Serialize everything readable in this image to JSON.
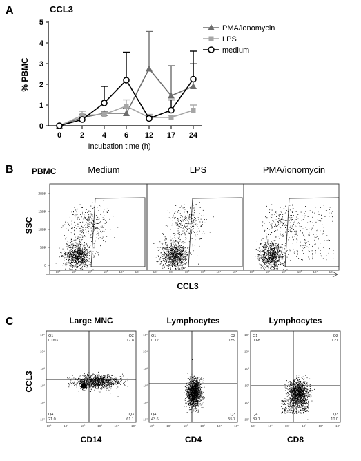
{
  "panels": {
    "A": {
      "letter": "A",
      "chart_data": {
        "type": "line",
        "title": "CCL3",
        "xlabel": "Incubation time (h)",
        "ylabel": "% PBMC",
        "categories": [
          "0",
          "2",
          "4",
          "6",
          "12",
          "17",
          "24"
        ],
        "ylim": [
          0,
          5
        ],
        "yticks": [
          "0",
          "1",
          "2",
          "3",
          "4",
          "5"
        ],
        "legend_position": "top-right",
        "series": [
          {
            "name": "PMA/ionomycin",
            "marker": "triangle",
            "color": "#6d6d6d",
            "values": [
              0,
              0.4,
              0.6,
              0.6,
              2.75,
              1.45,
              1.9
            ],
            "error": [
              0,
              0.15,
              0.1,
              0.25,
              1.8,
              1.45,
              1.1
            ]
          },
          {
            "name": "LPS",
            "marker": "square",
            "color": "#a6a6a6",
            "values": [
              0,
              0.5,
              0.55,
              0.95,
              0.4,
              0.4,
              0.75
            ],
            "error": [
              0,
              0.2,
              0.1,
              0.3,
              0.15,
              0.1,
              0.25
            ]
          },
          {
            "name": "medium",
            "marker": "circle",
            "color": "#000000",
            "values": [
              0,
              0.3,
              1.1,
              2.2,
              0.35,
              0.75,
              2.25
            ],
            "error": [
              0,
              0.1,
              0.8,
              1.35,
              0.1,
              0.5,
              1.35
            ]
          }
        ]
      }
    },
    "B": {
      "letter": "B",
      "label": "PBMC",
      "ylabel": "SSC",
      "xlabel": "CCL3",
      "yticks": [
        "200K",
        "150K",
        "100K",
        "50K",
        "0"
      ],
      "xticks": [
        "10°",
        "10¹",
        "10²",
        "10³",
        "10⁴",
        "10⁵"
      ],
      "plots": [
        {
          "title": "Medium"
        },
        {
          "title": "LPS"
        },
        {
          "title": "PMA/ionomycin"
        }
      ]
    },
    "C": {
      "letter": "C",
      "ylabel": "CCL3",
      "ticks": [
        "10°",
        "10¹",
        "10²",
        "10³",
        "10⁴",
        "10⁵"
      ],
      "plots": [
        {
          "title": "Large MNC",
          "xlabel": "CD14",
          "q1": {
            "label": "Q1",
            "value": "0.093"
          },
          "q2": {
            "label": "Q2",
            "value": "17.8"
          },
          "q3": {
            "label": "Q3",
            "value": "61.1"
          },
          "q4": {
            "label": "Q4",
            "value": "21.0"
          }
        },
        {
          "title": "Lymphocytes",
          "xlabel": "CD4",
          "q1": {
            "label": "Q1",
            "value": "0.12"
          },
          "q2": {
            "label": "Q2",
            "value": "0.59"
          },
          "q3": {
            "label": "Q3",
            "value": "55.7"
          },
          "q4": {
            "label": "Q4",
            "value": "43.6"
          }
        },
        {
          "title": "Lymphocytes",
          "xlabel": "CD8",
          "q1": {
            "label": "Q1",
            "value": "0.68"
          },
          "q2": {
            "label": "Q2",
            "value": "0.21"
          },
          "q3": {
            "label": "Q3",
            "value": "10.0"
          },
          "q4": {
            "label": "Q4",
            "value": "89.1"
          }
        }
      ]
    }
  }
}
